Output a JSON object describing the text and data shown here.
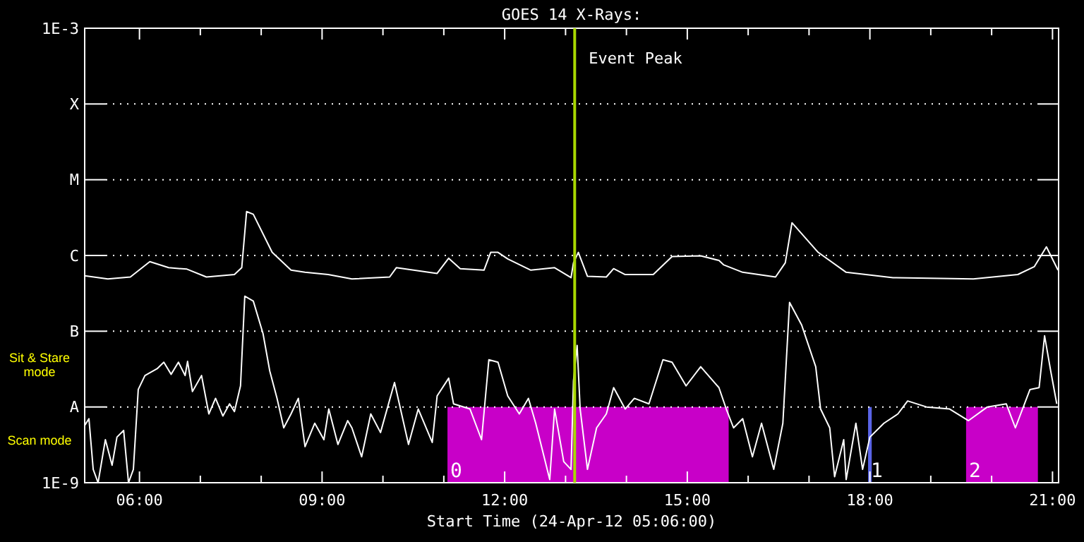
{
  "chart_data": {
    "type": "line",
    "title": "GOES 14 X-Rays:",
    "xlabel": "Start Time (24-Apr-12 05:06:00)",
    "log": true,
    "grid": "y",
    "marker": "none",
    "line_style": "solid",
    "xlim": [
      5.1,
      21.1
    ],
    "xticks": [
      {
        "value": 6,
        "label": "06:00"
      },
      {
        "value": 7,
        "label": null
      },
      {
        "value": 8,
        "label": null
      },
      {
        "value": 9,
        "label": "09:00"
      },
      {
        "value": 10,
        "label": null
      },
      {
        "value": 11,
        "label": null
      },
      {
        "value": 12,
        "label": "12:00"
      },
      {
        "value": 13,
        "label": null
      },
      {
        "value": 14,
        "label": null
      },
      {
        "value": 15,
        "label": "15:00"
      },
      {
        "value": 16,
        "label": null
      },
      {
        "value": 17,
        "label": null
      },
      {
        "value": 18,
        "label": "18:00"
      },
      {
        "value": 19,
        "label": null
      },
      {
        "value": 20,
        "label": null
      },
      {
        "value": 21,
        "label": "21:00"
      }
    ],
    "ylim": [
      1e-09,
      0.001
    ],
    "yticks": [
      {
        "value": 1e-09,
        "label": "1E-9"
      },
      {
        "value": 1e-08,
        "label": "A"
      },
      {
        "value": 1e-07,
        "label": "B"
      },
      {
        "value": 1e-06,
        "label": "C"
      },
      {
        "value": 1e-05,
        "label": "M"
      },
      {
        "value": 0.0001,
        "label": "X"
      },
      {
        "value": 0.001,
        "label": "1E-3"
      }
    ],
    "series": [
      {
        "color": "#ffffff",
        "x": [
          5.1,
          5.48,
          5.85,
          6.17,
          6.48,
          6.78,
          7.1,
          7.56,
          7.68,
          7.76,
          7.87,
          8.18,
          8.49,
          8.72,
          9.1,
          9.49,
          10.11,
          10.22,
          10.89,
          11.08,
          11.27,
          11.66,
          11.77,
          11.89,
          12.05,
          12.43,
          12.82,
          13.09,
          13.13,
          13.21,
          13.36,
          13.67,
          13.79,
          13.98,
          14.44,
          14.75,
          15.22,
          15.52,
          15.6,
          15.91,
          16.45,
          16.61,
          16.72,
          17.15,
          17.61,
          18.38,
          19.7,
          20.43,
          20.7,
          20.9,
          21.09
        ],
        "values": [
          5.4e-07,
          4.9e-07,
          5.2e-07,
          8.3e-07,
          6.9e-07,
          6.6e-07,
          5.2e-07,
          5.6e-07,
          6.9e-07,
          3.8e-06,
          3.5e-06,
          1.1e-06,
          6.4e-07,
          6e-07,
          5.6e-07,
          4.9e-07,
          5.2e-07,
          6.9e-07,
          5.8e-07,
          9.2e-07,
          6.7e-07,
          6.4e-07,
          1.1e-06,
          1.1e-06,
          9e-07,
          6.4e-07,
          6.9e-07,
          5.1e-07,
          8e-07,
          1.1e-06,
          5.3e-07,
          5.2e-07,
          6.7e-07,
          5.6e-07,
          5.6e-07,
          9.7e-07,
          9.9e-07,
          8.6e-07,
          7.5e-07,
          6e-07,
          5.2e-07,
          8e-07,
          2.7e-06,
          1.1e-06,
          6e-07,
          5.1e-07,
          4.9e-07,
          5.6e-07,
          7.1e-07,
          1.3e-06,
          6.4e-07
        ]
      },
      {
        "color": "#ffffff",
        "x": [
          5.1,
          5.17,
          5.24,
          5.32,
          5.44,
          5.55,
          5.63,
          5.74,
          5.82,
          5.9,
          5.98,
          6.09,
          6.29,
          6.4,
          6.52,
          6.64,
          6.75,
          6.79,
          6.87,
          7.02,
          7.14,
          7.25,
          7.37,
          7.48,
          7.56,
          7.66,
          7.73,
          7.87,
          8.03,
          8.14,
          8.26,
          8.37,
          8.49,
          8.61,
          8.72,
          8.88,
          9.03,
          9.11,
          9.26,
          9.42,
          9.49,
          9.65,
          9.8,
          9.96,
          10.19,
          10.42,
          10.58,
          10.81,
          10.89,
          11.08,
          11.16,
          11.43,
          11.62,
          11.74,
          11.89,
          12.05,
          12.24,
          12.39,
          12.51,
          12.74,
          12.82,
          12.97,
          13.09,
          13.13,
          13.19,
          13.24,
          13.36,
          13.51,
          13.67,
          13.79,
          13.98,
          14.13,
          14.37,
          14.6,
          14.75,
          14.98,
          15.22,
          15.52,
          15.64,
          15.76,
          15.91,
          16.07,
          16.22,
          16.42,
          16.57,
          16.68,
          16.88,
          17.11,
          17.19,
          17.34,
          17.42,
          17.57,
          17.61,
          17.77,
          17.88,
          18.0,
          18.23,
          18.46,
          18.62,
          18.93,
          19.31,
          19.62,
          19.93,
          20.24,
          20.39,
          20.63,
          20.78,
          20.87,
          20.97,
          21.07
        ],
        "values": [
          5.7e-09,
          7e-09,
          1.5e-09,
          1e-09,
          3.7e-09,
          1.7e-09,
          4e-09,
          4.9e-09,
          1e-09,
          1.5e-09,
          1.7e-08,
          2.6e-08,
          3.2e-08,
          3.9e-08,
          2.7e-08,
          3.9e-08,
          2.6e-08,
          4e-08,
          1.6e-08,
          2.6e-08,
          8.1e-09,
          1.3e-08,
          7.6e-09,
          1.1e-08,
          8.7e-09,
          1.9e-08,
          2.9e-07,
          2.5e-07,
          9.3e-08,
          3e-08,
          1.3e-08,
          5.3e-09,
          8.1e-09,
          1.3e-08,
          3e-09,
          6.1e-09,
          3.7e-09,
          9.4e-09,
          3.2e-09,
          6.6e-09,
          5.3e-09,
          2.2e-09,
          8.1e-09,
          4.6e-09,
          2.1e-08,
          3.2e-09,
          9.4e-09,
          3.4e-09,
          1.4e-08,
          2.4e-08,
          1.1e-08,
          9.4e-09,
          3.7e-09,
          4.2e-08,
          3.9e-08,
          1.4e-08,
          8.1e-09,
          1.3e-08,
          6.1e-09,
          1.1e-09,
          9.4e-09,
          1.9e-09,
          1.5e-09,
          2.2e-08,
          6.5e-08,
          9.4e-09,
          1.5e-09,
          5.3e-09,
          8.1e-09,
          1.8e-08,
          9.4e-09,
          1.3e-08,
          1.1e-08,
          4.2e-08,
          3.9e-08,
          1.9e-08,
          3.4e-08,
          1.8e-08,
          9.4e-09,
          5.3e-09,
          7e-09,
          2.2e-09,
          6.1e-09,
          1.5e-09,
          6.1e-09,
          2.4e-07,
          1.2e-07,
          3.4e-08,
          9.4e-09,
          5.3e-09,
          1.2e-09,
          3.7e-09,
          1.1e-09,
          6.1e-09,
          1.5e-09,
          4e-09,
          6.1e-09,
          8.1e-09,
          1.2e-08,
          1e-08,
          9.4e-09,
          6.6e-09,
          1e-08,
          1.1e-08,
          5.3e-09,
          1.7e-08,
          1.8e-08,
          8.7e-08,
          3e-08,
          1.1e-08
        ]
      }
    ],
    "ref_lines": [
      {
        "axis": "x",
        "value": 13.15,
        "label": "Event Peak",
        "color": "#a8d800"
      }
    ],
    "bands": [
      {
        "axis": "x",
        "from": 11.06,
        "to": 15.68,
        "label": "0",
        "color": "#c800c8"
      },
      {
        "axis": "x",
        "from": 17.97,
        "to": 18.03,
        "label": "1",
        "color": "#5a64e6"
      },
      {
        "axis": "x",
        "from": 19.58,
        "to": 20.76,
        "label": "2",
        "color": "#c800c8"
      }
    ],
    "annotations": [
      "Sit & Stare mode",
      "Scan mode"
    ]
  }
}
